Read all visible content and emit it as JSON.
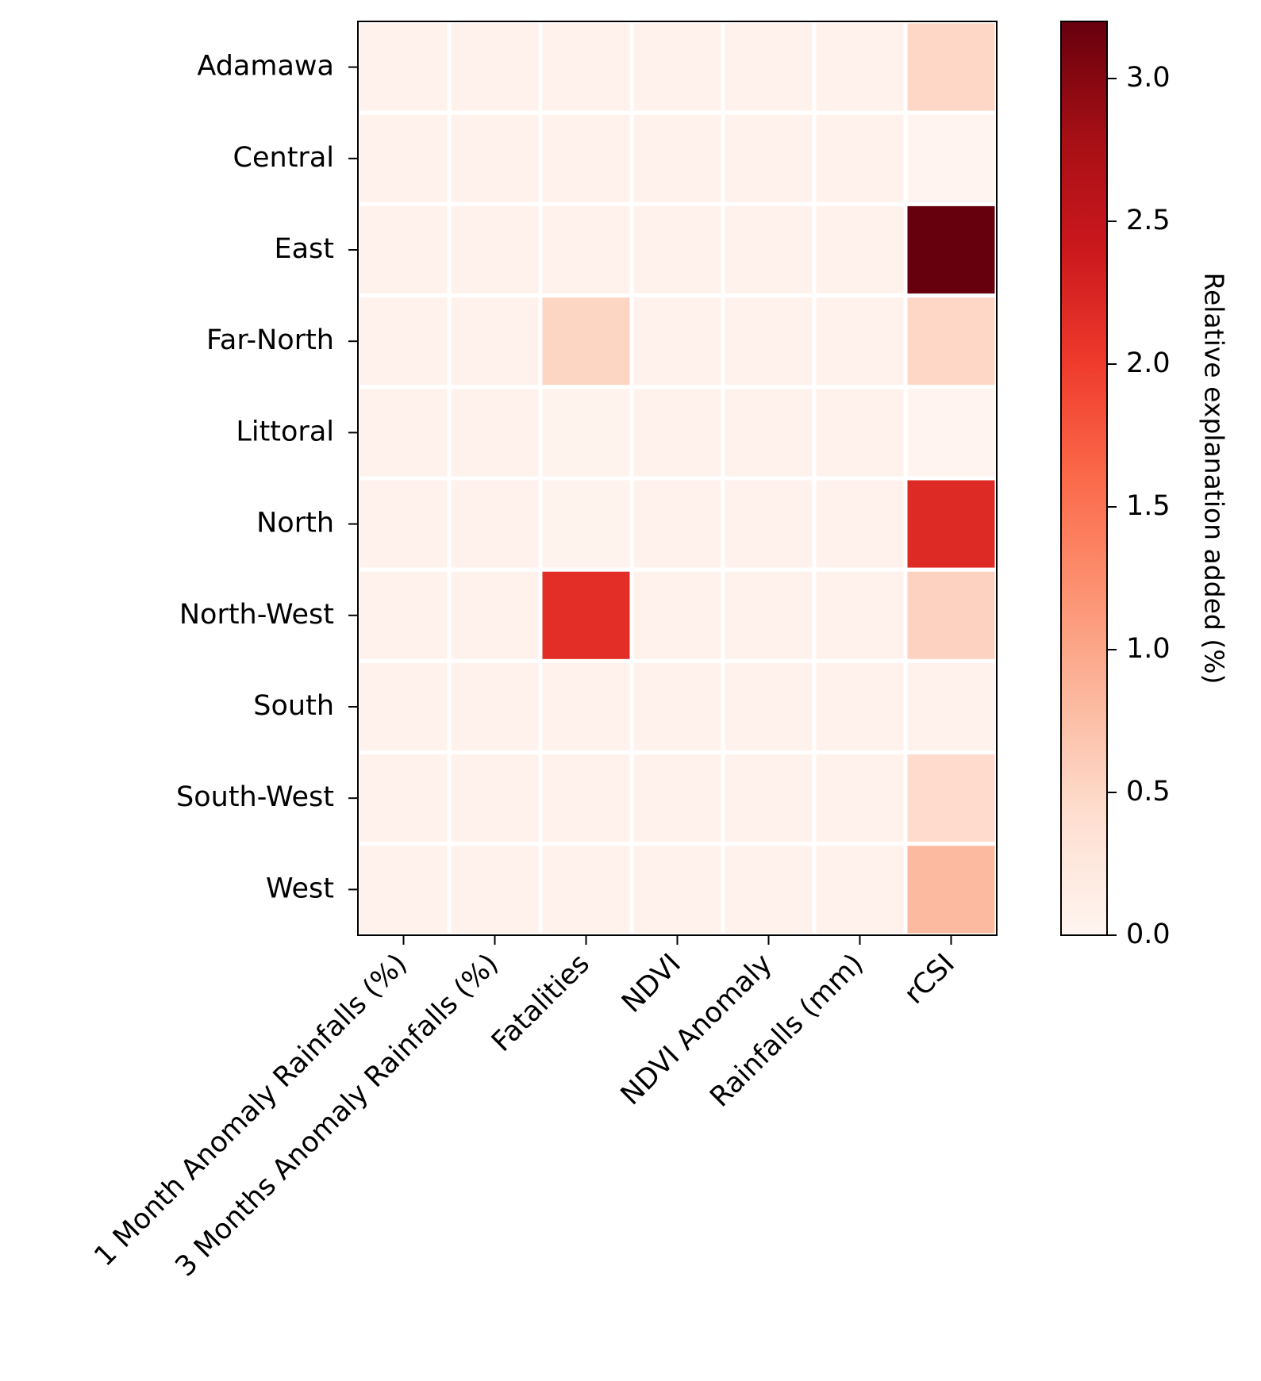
{
  "chart_data": {
    "type": "heatmap",
    "title": "",
    "rows": [
      "Adamawa",
      "Central",
      "East",
      "Far-North",
      "Littoral",
      "North",
      "North-West",
      "South",
      "South-West",
      "West"
    ],
    "columns": [
      "1 Month Anomaly Rainfalls (%)",
      "3 Months Anomaly Rainfalls (%)",
      "Fatalities",
      "NDVI",
      "NDVI Anomaly",
      "Rainfalls (mm)",
      "rCSI"
    ],
    "values": [
      [
        0.05,
        0.05,
        0.05,
        0.05,
        0.05,
        0.07,
        0.5
      ],
      [
        0.05,
        0.05,
        0.05,
        0.05,
        0.05,
        0.05,
        0.02
      ],
      [
        0.05,
        0.05,
        0.05,
        0.05,
        0.05,
        0.05,
        3.2
      ],
      [
        0.05,
        0.05,
        0.52,
        0.05,
        0.05,
        0.05,
        0.5
      ],
      [
        0.05,
        0.05,
        0.04,
        0.05,
        0.05,
        0.05,
        0.02
      ],
      [
        0.05,
        0.05,
        0.04,
        0.05,
        0.05,
        0.06,
        2.2
      ],
      [
        0.05,
        0.05,
        2.15,
        0.05,
        0.05,
        0.06,
        0.55
      ],
      [
        0.05,
        0.05,
        0.05,
        0.05,
        0.05,
        0.05,
        0.05
      ],
      [
        0.05,
        0.05,
        0.05,
        0.05,
        0.05,
        0.06,
        0.45
      ],
      [
        0.05,
        0.05,
        0.05,
        0.05,
        0.05,
        0.06,
        0.8
      ]
    ],
    "colormap": "Reds",
    "vmin": 0.0,
    "vmax": 3.2,
    "colorbar": {
      "label": "Relative explanation added (%)",
      "ticks": [
        0.0,
        0.5,
        1.0,
        1.5,
        2.0,
        2.5,
        3.0
      ],
      "tick_labels": [
        "0.0",
        "0.5",
        "1.0",
        "1.5",
        "2.0",
        "2.5",
        "3.0"
      ]
    },
    "xlabel": "",
    "ylabel": ""
  }
}
